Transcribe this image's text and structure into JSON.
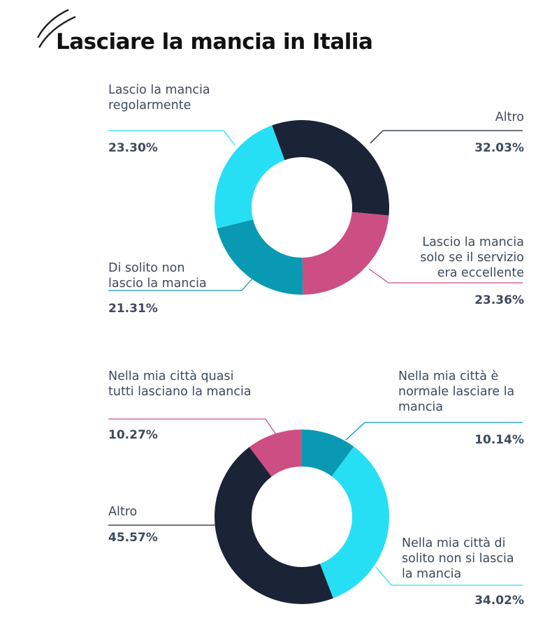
{
  "chart_data": [
    {
      "type": "pie",
      "title": "Lasciare la mancia in Italia",
      "donut": true,
      "start_angle_deg": -20,
      "slices": [
        {
          "label": "Altro",
          "value": 32.03,
          "display": "32.03%",
          "color": "#1b2336"
        },
        {
          "label": "Lascio la mancia solo se il servizio era eccellente",
          "value": 23.36,
          "display": "23.36%",
          "color": "#cc4e82"
        },
        {
          "label": "Di solito non lascio la mancia",
          "value": 21.31,
          "display": "21.31%",
          "color": "#0a99b2"
        },
        {
          "label": "Lascio la mancia regolarmente",
          "value": 23.3,
          "display": "23.30%",
          "color": "#27dff5"
        }
      ]
    },
    {
      "type": "pie",
      "donut": true,
      "start_angle_deg": -37,
      "slices": [
        {
          "label": "Nella mia città quasi tutti lasciano la mancia",
          "value": 10.27,
          "display": "10.27%",
          "color": "#cc4e82"
        },
        {
          "label": "Nella mia città è normale lasciare la mancia",
          "value": 10.14,
          "display": "10.14%",
          "color": "#0a99b2"
        },
        {
          "label": "Nella mia città di solito non si lascia la mancia",
          "value": 34.02,
          "display": "34.02%",
          "color": "#27dff5"
        },
        {
          "label": "Altro",
          "value": 45.57,
          "display": "45.57%",
          "color": "#1b2336"
        }
      ]
    }
  ],
  "title": "Lasciare la mancia in Italia"
}
